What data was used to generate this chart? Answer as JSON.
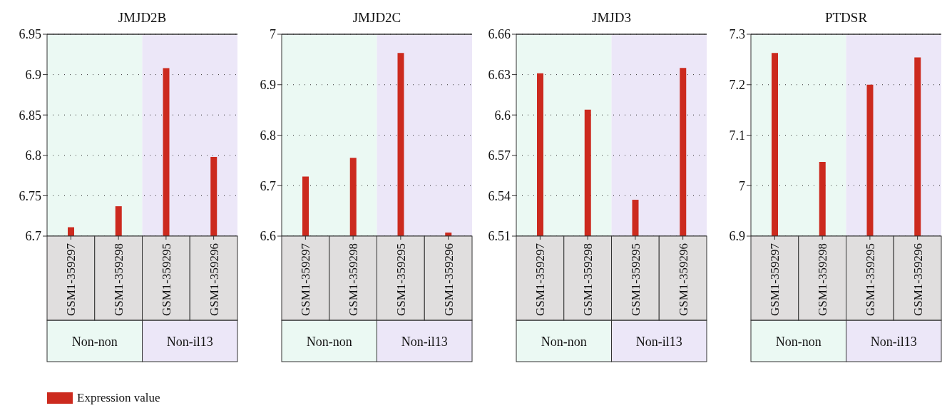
{
  "chart_data": [
    {
      "type": "bar",
      "title": "JMJD2B",
      "categories": [
        "GSM1-359297",
        "GSM1-359298",
        "GSM1-359295",
        "GSM1-359296"
      ],
      "series": [
        {
          "name": "Expression value",
          "color": "#cc2a1e",
          "values": [
            6.711,
            6.737,
            6.908,
            6.798
          ]
        }
      ],
      "ylim": [
        6.7,
        6.95
      ],
      "yticks": [
        6.7,
        6.75,
        6.8,
        6.85,
        6.9,
        6.95
      ],
      "grid": "y",
      "legend": "bottom",
      "bands": [
        {
          "axis": "x",
          "from": "GSM1-359297",
          "to": "GSM1-359298",
          "label": "Non-non",
          "color": "#ebf9f3"
        },
        {
          "axis": "x",
          "from": "GSM1-359295",
          "to": "GSM1-359296",
          "label": "Non-il13",
          "color": "#ece7f8"
        }
      ]
    },
    {
      "type": "bar",
      "title": "JMJD2C",
      "categories": [
        "GSM1-359297",
        "GSM1-359298",
        "GSM1-359295",
        "GSM1-359296"
      ],
      "series": [
        {
          "color": "#cc2a1e",
          "values": [
            6.718,
            6.755,
            6.963,
            6.607
          ]
        }
      ],
      "ylim": [
        6.6,
        7
      ],
      "yticks": [
        6.6,
        6.7,
        6.8,
        6.9,
        7
      ],
      "grid": "y",
      "bands": [
        {
          "axis": "x",
          "from": "GSM1-359297",
          "to": "GSM1-359298",
          "label": "Non-non",
          "color": "#ebf9f3"
        },
        {
          "axis": "x",
          "from": "GSM1-359295",
          "to": "GSM1-359296",
          "label": "Non-il13",
          "color": "#ece7f8"
        }
      ]
    },
    {
      "type": "bar",
      "title": "JMJD3",
      "categories": [
        "GSM1-359297",
        "GSM1-359298",
        "GSM1-359295",
        "GSM1-359296"
      ],
      "series": [
        {
          "color": "#cc2a1e",
          "values": [
            6.631,
            6.604,
            6.537,
            6.635
          ]
        }
      ],
      "ylim": [
        6.51,
        6.66
      ],
      "yticks": [
        6.51,
        6.54,
        6.57,
        6.6,
        6.63,
        6.66
      ],
      "grid": "y",
      "bands": [
        {
          "axis": "x",
          "from": "GSM1-359297",
          "to": "GSM1-359298",
          "label": "Non-non",
          "color": "#ebf9f3"
        },
        {
          "axis": "x",
          "from": "GSM1-359295",
          "to": "GSM1-359296",
          "label": "Non-il13",
          "color": "#ece7f8"
        }
      ]
    },
    {
      "type": "bar",
      "title": "PTDSR",
      "categories": [
        "GSM1-359297",
        "GSM1-359298",
        "GSM1-359295",
        "GSM1-359296"
      ],
      "series": [
        {
          "color": "#cc2a1e",
          "values": [
            7.263,
            7.047,
            7.2,
            7.254
          ]
        }
      ],
      "ylim": [
        6.9,
        7.3
      ],
      "yticks": [
        6.9,
        7,
        7.1,
        7.2,
        7.3
      ],
      "grid": "y",
      "bands": [
        {
          "axis": "x",
          "from": "GSM1-359297",
          "to": "GSM1-359298",
          "label": "Non-non",
          "color": "#ebf9f3"
        },
        {
          "axis": "x",
          "from": "GSM1-359295",
          "to": "GSM1-359296",
          "label": "Non-il13",
          "color": "#ece7f8"
        }
      ]
    }
  ]
}
